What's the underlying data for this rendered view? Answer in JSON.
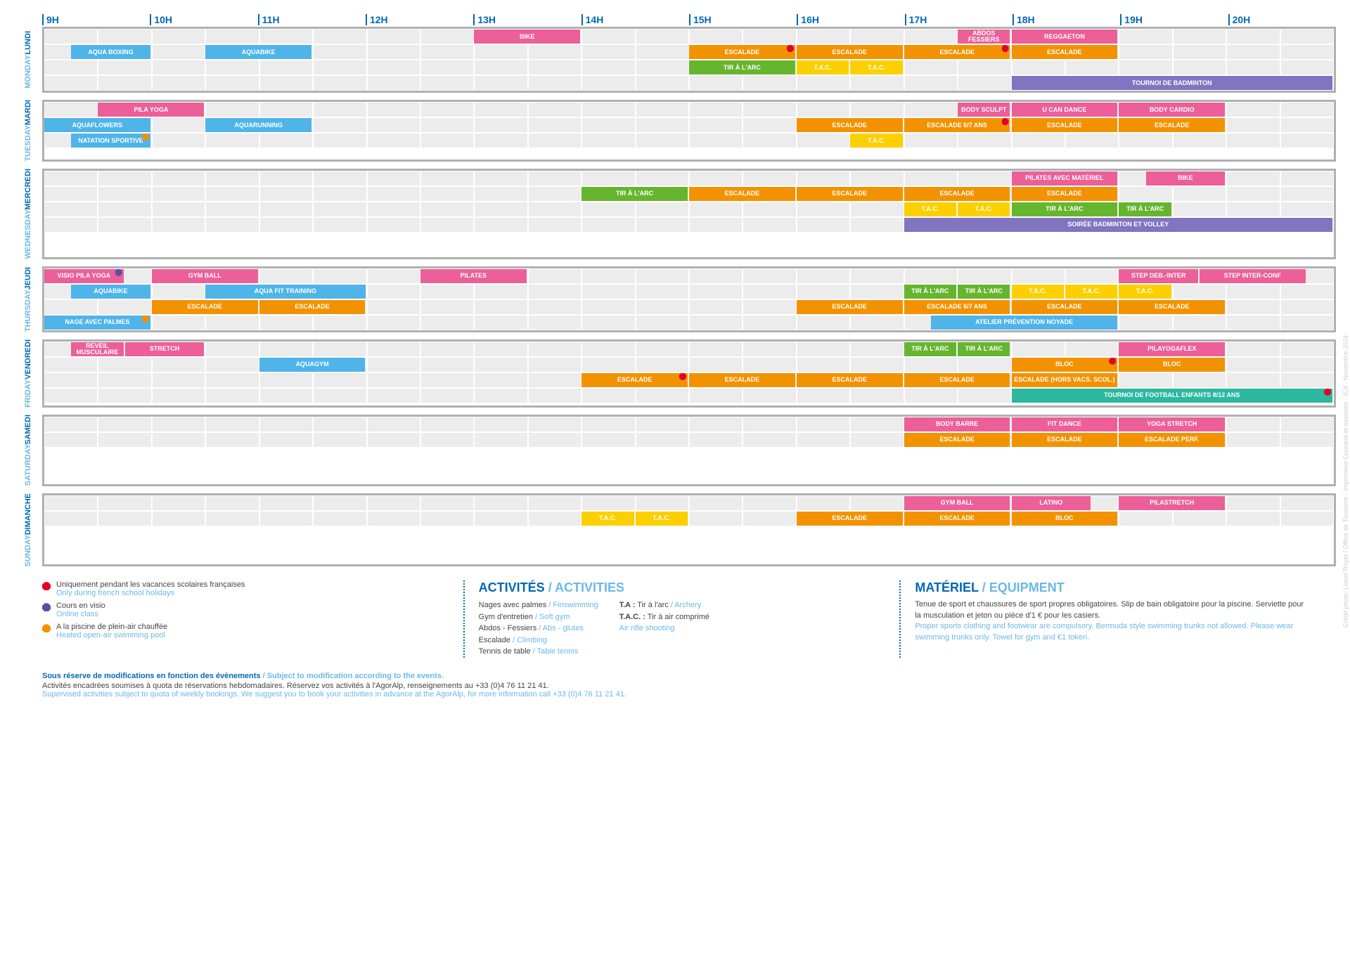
{
  "colors": {
    "pink": "#ec5f99",
    "blue": "#4fb4e8",
    "orange": "#f39200",
    "yellow": "#fccf00",
    "green": "#66b52e",
    "green2": "#2bb89e",
    "purple": "#8174c0",
    "brand": "#0068b4",
    "brand_light": "#6cb8e6"
  },
  "hours": [
    "9H",
    "10H",
    "11H",
    "12H",
    "13H",
    "14H",
    "15H",
    "16H",
    "17H",
    "18H",
    "19H",
    "20H"
  ],
  "hour_start": 9,
  "hour_end": 21,
  "days": [
    {
      "fr": "LUNDI",
      "en": "MONDAY",
      "rows": 4,
      "activities": [
        {
          "row": 0,
          "start": 13,
          "end": 14,
          "label": "BIKE",
          "color": "pink"
        },
        {
          "row": 0,
          "start": 17.5,
          "end": 18,
          "label": "ABDOS FESSIERS",
          "color": "pink"
        },
        {
          "row": 0,
          "start": 18,
          "end": 19,
          "label": "REGGAETON",
          "color": "pink"
        },
        {
          "row": 1,
          "start": 9.25,
          "end": 10,
          "label": "AQUA BOXING",
          "color": "blue"
        },
        {
          "row": 1,
          "start": 10.5,
          "end": 11.5,
          "label": "AQUABIKE",
          "color": "blue"
        },
        {
          "row": 1,
          "start": 15,
          "end": 16,
          "label": "ESCALADE",
          "color": "orange",
          "marker": "red"
        },
        {
          "row": 1,
          "start": 16,
          "end": 17,
          "label": "ESCALADE",
          "color": "orange"
        },
        {
          "row": 1,
          "start": 17,
          "end": 18,
          "label": "ESCALADE",
          "color": "orange",
          "marker": "red"
        },
        {
          "row": 1,
          "start": 18,
          "end": 19,
          "label": "ESCALADE",
          "color": "orange"
        },
        {
          "row": 2,
          "start": 15,
          "end": 16,
          "label": "TIR À L'ARC",
          "color": "green"
        },
        {
          "row": 2,
          "start": 16,
          "end": 16.5,
          "label": "T.A.C.",
          "color": "yellow"
        },
        {
          "row": 2,
          "start": 16.5,
          "end": 17,
          "label": "T.A.C.",
          "color": "yellow"
        },
        {
          "row": 3,
          "start": 18,
          "end": 21,
          "label": "TOURNOI DE BADMINTON",
          "color": "purple"
        }
      ]
    },
    {
      "fr": "MARDI",
      "en": "TUESDAY",
      "rows": 3,
      "activities": [
        {
          "row": 0,
          "start": 9.5,
          "end": 10.5,
          "label": "PILA YOGA",
          "color": "pink"
        },
        {
          "row": 0,
          "start": 17.5,
          "end": 18,
          "label": "BODY SCULPT",
          "color": "pink"
        },
        {
          "row": 0,
          "start": 18,
          "end": 19,
          "label": "U CAN DANCE",
          "color": "pink"
        },
        {
          "row": 0,
          "start": 19,
          "end": 20,
          "label": "BODY CARDIO",
          "color": "pink"
        },
        {
          "row": 1,
          "start": 9,
          "end": 10,
          "label": "AQUAFLOWERS",
          "color": "blue"
        },
        {
          "row": 1,
          "start": 10.5,
          "end": 11.5,
          "label": "AQUARUNNING",
          "color": "blue"
        },
        {
          "row": 1,
          "start": 16,
          "end": 17,
          "label": "ESCALADE",
          "color": "orange"
        },
        {
          "row": 1,
          "start": 17,
          "end": 18,
          "label": "ESCALADE 6/7 ANS",
          "color": "orange",
          "marker": "red"
        },
        {
          "row": 1,
          "start": 18,
          "end": 19,
          "label": "ESCALADE",
          "color": "orange"
        },
        {
          "row": 1,
          "start": 19,
          "end": 20,
          "label": "ESCALADE",
          "color": "orange"
        },
        {
          "row": 2,
          "start": 9.25,
          "end": 10,
          "label": "NATATION SPORTIVE",
          "color": "blue",
          "marker": "orange-hex"
        },
        {
          "row": 2,
          "start": 16.5,
          "end": 17,
          "label": "T.A.C.",
          "color": "yellow"
        }
      ]
    },
    {
      "fr": "MERCREDI",
      "en": "WEDNESDAY",
      "rows": 4,
      "activities": [
        {
          "row": 0,
          "start": 18,
          "end": 19,
          "label": "PILATES AVEC MATÉRIEL",
          "color": "pink"
        },
        {
          "row": 0,
          "start": 19.25,
          "end": 20,
          "label": "BIKE",
          "color": "pink"
        },
        {
          "row": 1,
          "start": 14,
          "end": 15,
          "label": "TIR À L'ARC",
          "color": "green"
        },
        {
          "row": 1,
          "start": 15,
          "end": 16,
          "label": "ESCALADE",
          "color": "orange"
        },
        {
          "row": 1,
          "start": 16,
          "end": 17,
          "label": "ESCALADE",
          "color": "orange"
        },
        {
          "row": 1,
          "start": 17,
          "end": 18,
          "label": "ESCALADE",
          "color": "orange"
        },
        {
          "row": 1,
          "start": 18,
          "end": 19,
          "label": "ESCALADE",
          "color": "orange"
        },
        {
          "row": 2,
          "start": 17,
          "end": 17.5,
          "label": "T.A.C.",
          "color": "yellow"
        },
        {
          "row": 2,
          "start": 17.5,
          "end": 18,
          "label": "T.A.C.",
          "color": "yellow"
        },
        {
          "row": 2,
          "start": 18,
          "end": 19,
          "label": "TIR À L'ARC",
          "color": "green"
        },
        {
          "row": 2,
          "start": 19,
          "end": 19.5,
          "label": "TIR À L'ARC",
          "color": "green"
        },
        {
          "row": 3,
          "start": 17,
          "end": 21,
          "label": "SOIRÉE BADMINTON ET VOLLEY",
          "color": "purple"
        }
      ]
    },
    {
      "fr": "JEUDI",
      "en": "THURSDAY",
      "rows": 4,
      "activities": [
        {
          "row": 0,
          "start": 9,
          "end": 9.75,
          "label": "VISIO PILA YOGA",
          "color": "pink",
          "marker": "purple"
        },
        {
          "row": 0,
          "start": 10,
          "end": 11,
          "label": "GYM BALL",
          "color": "pink"
        },
        {
          "row": 0,
          "start": 12.5,
          "end": 13.5,
          "label": "PILATES",
          "color": "pink"
        },
        {
          "row": 0,
          "start": 19,
          "end": 19.75,
          "label": "STEP DEB.-INTER",
          "color": "pink"
        },
        {
          "row": 0,
          "start": 19.75,
          "end": 20.75,
          "label": "STEP INTER-CONF",
          "color": "pink"
        },
        {
          "row": 1,
          "start": 9.25,
          "end": 10,
          "label": "AQUABIKE",
          "color": "blue"
        },
        {
          "row": 1,
          "start": 10.5,
          "end": 12,
          "label": "AQUA FIT TRAINING",
          "color": "blue"
        },
        {
          "row": 1,
          "start": 17,
          "end": 17.5,
          "label": "TIR À L'ARC",
          "color": "green"
        },
        {
          "row": 1,
          "start": 17.5,
          "end": 18,
          "label": "TIR À L'ARC",
          "color": "green"
        },
        {
          "row": 1,
          "start": 18,
          "end": 18.5,
          "label": "T.A.C.",
          "color": "yellow"
        },
        {
          "row": 1,
          "start": 18.5,
          "end": 19,
          "label": "T.A.C.",
          "color": "yellow"
        },
        {
          "row": 1,
          "start": 19,
          "end": 19.5,
          "label": "T.A.C.",
          "color": "yellow"
        },
        {
          "row": 2,
          "start": 10,
          "end": 11,
          "label": "ESCALADE",
          "color": "orange"
        },
        {
          "row": 2,
          "start": 11,
          "end": 12,
          "label": "ESCALADE",
          "color": "orange"
        },
        {
          "row": 2,
          "start": 16,
          "end": 17,
          "label": "ESCALADE",
          "color": "orange"
        },
        {
          "row": 2,
          "start": 17,
          "end": 18,
          "label": "ESCALADE 6/7 ANS",
          "color": "orange"
        },
        {
          "row": 2,
          "start": 18,
          "end": 19,
          "label": "ESCALADE",
          "color": "orange"
        },
        {
          "row": 2,
          "start": 19,
          "end": 20,
          "label": "ESCALADE",
          "color": "orange"
        },
        {
          "row": 3,
          "start": 9,
          "end": 10,
          "label": "NAGE AVEC PALMES",
          "color": "blue",
          "marker": "orange-hex"
        },
        {
          "row": 3,
          "start": 17.25,
          "end": 19,
          "label": "ATELIER PRÉVENTION NOYADE",
          "color": "blue"
        }
      ]
    },
    {
      "fr": "VENDREDI",
      "en": "FRIDAY",
      "rows": 4,
      "activities": [
        {
          "row": 0,
          "start": 9.25,
          "end": 9.75,
          "label": "REVEIL MUSCULAIRE",
          "color": "pink"
        },
        {
          "row": 0,
          "start": 9.75,
          "end": 10.5,
          "label": "STRETCH",
          "color": "pink"
        },
        {
          "row": 0,
          "start": 17,
          "end": 17.5,
          "label": "TIR À L'ARC",
          "color": "green"
        },
        {
          "row": 0,
          "start": 17.5,
          "end": 18,
          "label": "TIR À L'ARC",
          "color": "green"
        },
        {
          "row": 0,
          "start": 19,
          "end": 20,
          "label": "PILAYOGAFLEX",
          "color": "pink"
        },
        {
          "row": 1,
          "start": 11,
          "end": 12,
          "label": "AQUAGYM",
          "color": "blue"
        },
        {
          "row": 1,
          "start": 18,
          "end": 19,
          "label": "BLOC",
          "color": "orange",
          "marker": "red"
        },
        {
          "row": 1,
          "start": 19,
          "end": 20,
          "label": "BLOC",
          "color": "orange"
        },
        {
          "row": 2,
          "start": 14,
          "end": 15,
          "label": "ESCALADE",
          "color": "orange",
          "marker": "red"
        },
        {
          "row": 2,
          "start": 15,
          "end": 16,
          "label": "ESCALADE",
          "color": "orange"
        },
        {
          "row": 2,
          "start": 16,
          "end": 17,
          "label": "ESCALADE",
          "color": "orange"
        },
        {
          "row": 2,
          "start": 17,
          "end": 18,
          "label": "ESCALADE",
          "color": "orange"
        },
        {
          "row": 2,
          "start": 18,
          "end": 19,
          "label": "ESCALADE (HORS VACS. SCOL.)",
          "color": "orange"
        },
        {
          "row": 3,
          "start": 18,
          "end": 21,
          "label": "TOURNOI DE FOOTBALL ENFANTS 8/12 ANS",
          "color": "green2",
          "marker": "red"
        }
      ]
    },
    {
      "fr": "SAMEDI",
      "en": "SATURDAY",
      "rows": 2,
      "activities": [
        {
          "row": 0,
          "start": 17,
          "end": 18,
          "label": "BODY BARRE",
          "color": "pink"
        },
        {
          "row": 0,
          "start": 18,
          "end": 19,
          "label": "FIT DANCE",
          "color": "pink"
        },
        {
          "row": 0,
          "start": 19,
          "end": 20,
          "label": "YOGA STRETCH",
          "color": "pink"
        },
        {
          "row": 1,
          "start": 17,
          "end": 18,
          "label": "ESCALADE",
          "color": "orange"
        },
        {
          "row": 1,
          "start": 18,
          "end": 19,
          "label": "ESCALADE",
          "color": "orange"
        },
        {
          "row": 1,
          "start": 19,
          "end": 20,
          "label": "ESCALADE PERF.",
          "color": "orange"
        }
      ]
    },
    {
      "fr": "DIMANCHE",
      "en": "SUNDAY",
      "rows": 2,
      "activities": [
        {
          "row": 0,
          "start": 17,
          "end": 18,
          "label": "GYM BALL",
          "color": "pink"
        },
        {
          "row": 0,
          "start": 18,
          "end": 18.75,
          "label": "LATINO",
          "color": "pink"
        },
        {
          "row": 0,
          "start": 19,
          "end": 20,
          "label": "PILASTRETCH",
          "color": "pink"
        },
        {
          "row": 1,
          "start": 14,
          "end": 14.5,
          "label": "T.A.C.",
          "color": "yellow"
        },
        {
          "row": 1,
          "start": 14.5,
          "end": 15,
          "label": "T.A.C.",
          "color": "yellow"
        },
        {
          "row": 1,
          "start": 16,
          "end": 17,
          "label": "ESCALADE",
          "color": "orange"
        },
        {
          "row": 1,
          "start": 17,
          "end": 18,
          "label": "ESCALADE",
          "color": "orange"
        },
        {
          "row": 1,
          "start": 18,
          "end": 19,
          "label": "BLOC",
          "color": "orange"
        }
      ]
    }
  ],
  "legend_icons": [
    {
      "icon": "red",
      "fr": "Uniquement pendant les vacances scolaires françaises",
      "en": "Only during french school holidays"
    },
    {
      "icon": "purple",
      "fr": "Cours en visio",
      "en": "Online class"
    },
    {
      "icon": "orange",
      "fr": "A la piscine de plein-air chauffée",
      "en": "Heated open-air swimming pool"
    }
  ],
  "activities_title_fr": "ACTIVITÉS",
  "activities_title_en": " / ACTIVITIES",
  "activities_list_col1": [
    {
      "fr": "Nages avec palmes",
      "en": " / Finswimming"
    },
    {
      "fr": "Gym d'entretien",
      "en": " / Soft gym"
    },
    {
      "fr": "Abdos - Fessiers",
      "en": " / Abs - glutes"
    },
    {
      "fr": "Escalade",
      "en": " / Climbing"
    },
    {
      "fr": "Tennis de table",
      "en": " / Table tennis"
    }
  ],
  "activities_list_col2": [
    {
      "fr": "T.A :",
      "rest": " Tir à l'arc",
      "en": " / Archery"
    },
    {
      "fr": "T.A.C. :",
      "rest": " Tir à air comprimé",
      "en2": "Air rifle shooting"
    }
  ],
  "equipment_title_fr": "MATÉRIEL",
  "equipment_title_en": " / EQUIPMENT",
  "equipment_fr": "Tenue de sport et chaussures de sport propres obligatoires. Slip de bain obligatoire pour la piscine. Serviette pour la musculation et jeton ou pièce d'1 € pour les casiers.",
  "equipment_en": "Proper sports clothing and footwear are compulsory. Bermuda style swimming trunks not allowed. Please wear swimming trunks only. Towel for gym and €1 token.",
  "footer_main_fr": "Sous réserve de modifications en fonction des évènements",
  "footer_main_en": " / Subject to modification according to the events.",
  "footer_sub_fr": "Activités encadrées soumises à quota de réservations hebdomadaires. Réservez vos activités à l'AgorAlp, renseignements au +33 (0)4 76 11 21 41.",
  "footer_sub_en": "Supervised activities subject to quota of weekly bookings. We suggest you to book your activities in advance at the AgorAlp, for more information call +33 (0)4 76 11 21 41.",
  "credit": "Crédit photo: Lionel Royet / Office de Tourisme - Imprimerie Courand et associés - ICA - Novembre 2024"
}
